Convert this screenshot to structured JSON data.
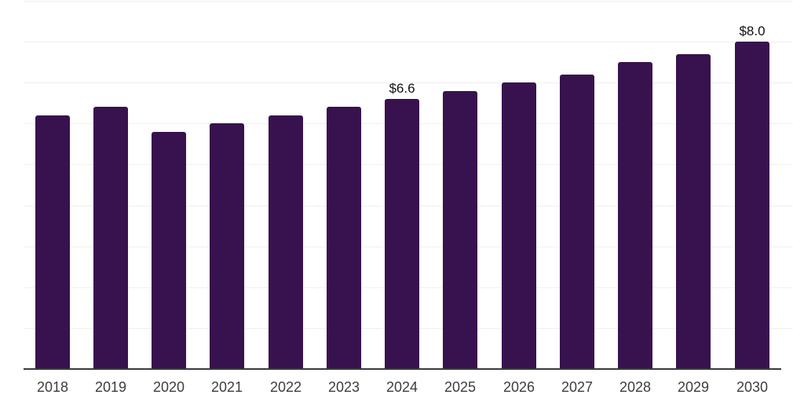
{
  "chart_data": {
    "type": "bar",
    "title": "",
    "xlabel": "",
    "ylabel": "",
    "categories": [
      "2018",
      "2019",
      "2020",
      "2021",
      "2022",
      "2023",
      "2024",
      "2025",
      "2026",
      "2027",
      "2028",
      "2029",
      "2030"
    ],
    "values": [
      6.2,
      6.4,
      5.8,
      6.0,
      6.2,
      6.4,
      6.6,
      6.8,
      7.0,
      7.2,
      7.5,
      7.7,
      8.0
    ],
    "value_labels": {
      "2024": "$6.6",
      "2030": "$8.0"
    },
    "ylim": [
      0,
      9
    ],
    "gridline_step": 1,
    "grid": "horizontal",
    "legend": "none",
    "colors": {
      "bar": "#38124e",
      "axis": "#3a3a3a",
      "gridline": "#f0f0f2",
      "tick_label": "#3d3d3d",
      "value_label": "#111111",
      "background": "#ffffff"
    }
  }
}
